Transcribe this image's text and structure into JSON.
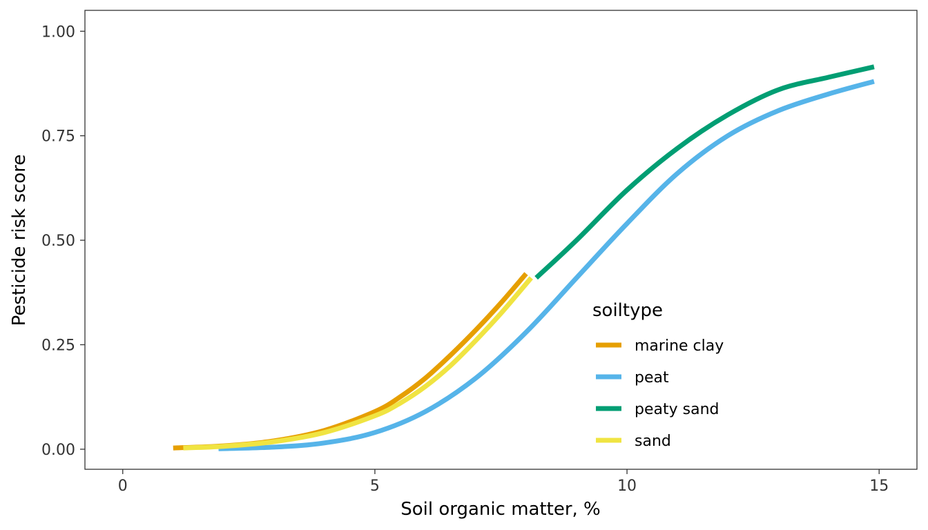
{
  "chart_data": {
    "type": "line",
    "xlabel": "Soil organic matter, %",
    "ylabel": "Pesticide risk score",
    "xlim": [
      -0.75,
      15.75
    ],
    "ylim": [
      -0.048,
      1.05
    ],
    "x_ticks": [
      {
        "value": 0,
        "label": "0"
      },
      {
        "value": 5,
        "label": "5"
      },
      {
        "value": 10,
        "label": "10"
      },
      {
        "value": 15,
        "label": "15"
      }
    ],
    "y_ticks": [
      {
        "value": 0.0,
        "label": "0.00"
      },
      {
        "value": 0.25,
        "label": "0.25"
      },
      {
        "value": 0.5,
        "label": "0.50"
      },
      {
        "value": 0.75,
        "label": "0.75"
      },
      {
        "value": 1.0,
        "label": "1.00"
      }
    ],
    "grid": false,
    "legend": {
      "title": "soiltype",
      "placement": "inside-bottom-right"
    },
    "series": [
      {
        "name": "marine clay",
        "color": "#E69F00",
        "x": [
          1.0,
          2.0,
          3.0,
          4.0,
          5.0,
          5.5,
          6.0,
          6.5,
          7.0,
          7.5,
          8.0
        ],
        "y": [
          0.003,
          0.008,
          0.02,
          0.045,
          0.09,
          0.125,
          0.17,
          0.225,
          0.285,
          0.35,
          0.42
        ]
      },
      {
        "name": "peat",
        "color": "#56B4E9",
        "x": [
          1.9,
          3.0,
          4.0,
          5.0,
          6.0,
          7.0,
          8.0,
          9.0,
          10.0,
          11.0,
          12.0,
          13.0,
          14.0,
          14.9
        ],
        "y": [
          0.001,
          0.005,
          0.015,
          0.04,
          0.09,
          0.17,
          0.28,
          0.41,
          0.54,
          0.66,
          0.75,
          0.81,
          0.85,
          0.88
        ]
      },
      {
        "name": "peaty sand",
        "color": "#009E73",
        "x": [
          8.2,
          9.0,
          10.0,
          11.0,
          12.0,
          13.0,
          14.0,
          14.9
        ],
        "y": [
          0.41,
          0.5,
          0.62,
          0.72,
          0.8,
          0.86,
          0.89,
          0.915
        ]
      },
      {
        "name": "sand",
        "color": "#F0E442",
        "x": [
          1.2,
          2.0,
          3.0,
          4.0,
          5.0,
          5.5,
          6.0,
          6.5,
          7.0,
          7.5,
          8.1
        ],
        "y": [
          0.003,
          0.007,
          0.018,
          0.04,
          0.08,
          0.11,
          0.15,
          0.2,
          0.26,
          0.325,
          0.41
        ]
      }
    ]
  }
}
